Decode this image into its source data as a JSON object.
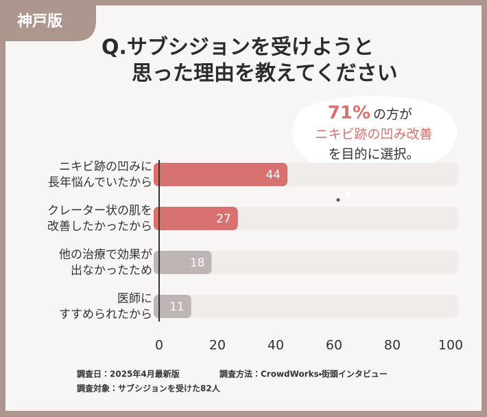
{
  "badge": "神戸版",
  "chart_data": {
    "type": "bar",
    "orientation": "horizontal",
    "title": [
      "Q.サブシジョンを受けようと",
      "思った理由を教えてください"
    ],
    "annotation": [
      [
        "71%",
        "の方が"
      ],
      [
        "ニキビ跡の凹み改善"
      ],
      [
        "を目的に選択。"
      ]
    ],
    "categories": [
      [
        "ニキビ跡の凹みに",
        "長年悩んでいたから"
      ],
      [
        "クレーター状の肌を",
        "改善したかったから"
      ],
      [
        "他の治療で効果が",
        "出なかったため"
      ],
      [
        "医師に",
        "すすめられたから"
      ]
    ],
    "values": [
      44,
      27,
      18,
      11
    ],
    "colors": [
      "#d6716f",
      "#d6716f",
      "#bdb6b4",
      "#bdb6b4"
    ],
    "track_color": "#f0ecea",
    "xlim": [
      0,
      100
    ],
    "xticks": [
      0,
      20,
      40,
      60,
      80,
      100
    ]
  },
  "footer": [
    "調査日：2025年4月最新版",
    "調査方法：CrowdWorks・街頭インタビュー",
    "調査対象：サブシジョンを受けた82人"
  ]
}
